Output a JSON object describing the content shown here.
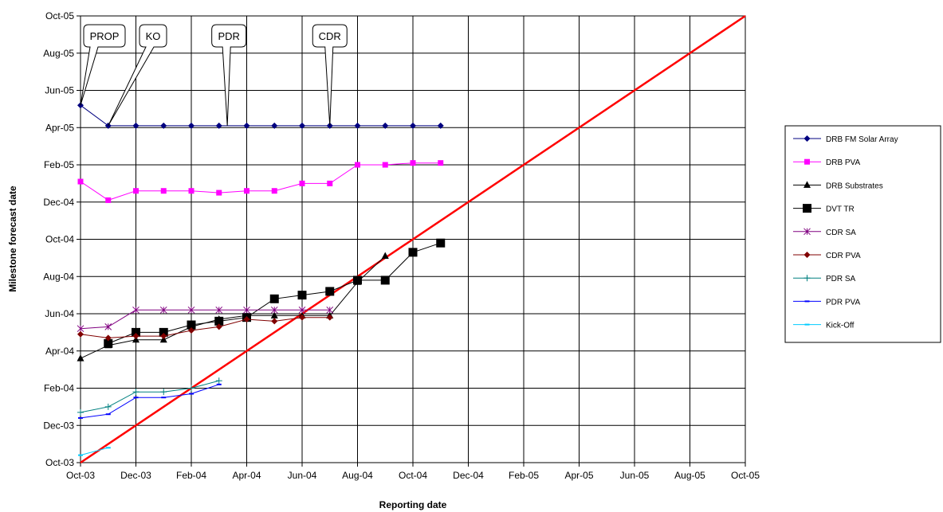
{
  "chart_data": {
    "type": "line",
    "xlabel": "Reporting date",
    "ylabel": "Milestone forecast date",
    "x_ticks": [
      "Oct-03",
      "Dec-03",
      "Feb-04",
      "Apr-04",
      "Jun-04",
      "Aug-04",
      "Oct-04",
      "Dec-04",
      "Feb-05",
      "Apr-05",
      "Jun-05",
      "Aug-05",
      "Oct-05"
    ],
    "y_ticks": [
      "Oct-03",
      "Dec-03",
      "Feb-04",
      "Apr-04",
      "Jun-04",
      "Aug-04",
      "Oct-04",
      "Dec-04",
      "Feb-05",
      "Apr-05",
      "Jun-05",
      "Aug-05",
      "Oct-05"
    ],
    "xlim": [
      0,
      24
    ],
    "ylim": [
      0,
      24
    ],
    "value_units": "months from Oct-03",
    "grid": true,
    "legend_position": "right",
    "diagonal": {
      "from": [
        0,
        0
      ],
      "to": [
        24,
        24
      ],
      "color": "#ff0000"
    },
    "series": [
      {
        "name": "DRB FM Solar Array",
        "color": "#000080",
        "marker": "diamond",
        "points": [
          [
            0,
            19.2
          ],
          [
            1,
            18.1
          ],
          [
            2,
            18.1
          ],
          [
            3,
            18.1
          ],
          [
            4,
            18.1
          ],
          [
            5,
            18.1
          ],
          [
            6,
            18.1
          ],
          [
            7,
            18.1
          ],
          [
            8,
            18.1
          ],
          [
            9,
            18.1
          ],
          [
            10,
            18.1
          ],
          [
            11,
            18.1
          ],
          [
            12,
            18.1
          ],
          [
            13,
            18.1
          ]
        ]
      },
      {
        "name": "DRB PVA",
        "color": "#ff00ff",
        "marker": "square",
        "points": [
          [
            0,
            15.1
          ],
          [
            1,
            14.1
          ],
          [
            2,
            14.6
          ],
          [
            3,
            14.6
          ],
          [
            4,
            14.6
          ],
          [
            5,
            14.5
          ],
          [
            6,
            14.6
          ],
          [
            7,
            14.6
          ],
          [
            8,
            15.0
          ],
          [
            9,
            15.0
          ],
          [
            10,
            16.0
          ],
          [
            11,
            16.0
          ],
          [
            12,
            16.1
          ],
          [
            13,
            16.1
          ]
        ]
      },
      {
        "name": "DRB Substrates",
        "color": "#000000",
        "marker": "triangle",
        "points": [
          [
            0,
            5.6
          ],
          [
            1,
            6.3
          ],
          [
            2,
            6.6
          ],
          [
            3,
            6.6
          ],
          [
            4,
            7.3
          ],
          [
            5,
            7.7
          ],
          [
            6,
            7.9
          ],
          [
            7,
            7.9
          ],
          [
            8,
            7.9
          ],
          [
            9,
            7.9
          ],
          [
            10,
            9.7
          ],
          [
            11,
            11.1
          ]
        ]
      },
      {
        "name": "DVT TR",
        "color": "#000000",
        "marker": "bigsquare",
        "points": [
          [
            1,
            6.4
          ],
          [
            2,
            7.0
          ],
          [
            3,
            7.0
          ],
          [
            4,
            7.4
          ],
          [
            5,
            7.6
          ],
          [
            6,
            7.8
          ],
          [
            7,
            8.8
          ],
          [
            8,
            9.0
          ],
          [
            9,
            9.2
          ],
          [
            10,
            9.8
          ],
          [
            11,
            9.8
          ],
          [
            12,
            11.3
          ],
          [
            13,
            11.8
          ]
        ]
      },
      {
        "name": "CDR SA",
        "color": "#800080",
        "marker": "star",
        "points": [
          [
            0,
            7.2
          ],
          [
            1,
            7.3
          ],
          [
            2,
            8.2
          ],
          [
            3,
            8.2
          ],
          [
            4,
            8.2
          ],
          [
            5,
            8.2
          ],
          [
            6,
            8.2
          ],
          [
            7,
            8.2
          ],
          [
            8,
            8.2
          ],
          [
            9,
            8.2
          ]
        ]
      },
      {
        "name": "CDR PVA",
        "color": "#800000",
        "marker": "diamond",
        "points": [
          [
            0,
            6.9
          ],
          [
            1,
            6.7
          ],
          [
            2,
            6.8
          ],
          [
            3,
            6.8
          ],
          [
            4,
            7.1
          ],
          [
            5,
            7.3
          ],
          [
            6,
            7.7
          ],
          [
            7,
            7.6
          ],
          [
            8,
            7.8
          ],
          [
            9,
            7.8
          ]
        ]
      },
      {
        "name": "PDR SA",
        "color": "#008080",
        "marker": "plus",
        "points": [
          [
            0,
            2.7
          ],
          [
            1,
            3.0
          ],
          [
            2,
            3.8
          ],
          [
            3,
            3.8
          ],
          [
            4,
            4.0
          ],
          [
            5,
            4.4
          ]
        ]
      },
      {
        "name": "PDR PVA",
        "color": "#0000ff",
        "marker": "dash",
        "points": [
          [
            0,
            2.4
          ],
          [
            1,
            2.6
          ],
          [
            2,
            3.5
          ],
          [
            3,
            3.5
          ],
          [
            4,
            3.7
          ],
          [
            5,
            4.2
          ]
        ]
      },
      {
        "name": "Kick-Off",
        "color": "#00ccff",
        "marker": "dash",
        "points": [
          [
            0,
            0.4
          ],
          [
            1,
            0.8
          ]
        ]
      }
    ],
    "annotations": [
      {
        "text": "PROP",
        "target": [
          0,
          19.2
        ]
      },
      {
        "text": "KO",
        "target": [
          1,
          18.1
        ]
      },
      {
        "text": "PDR",
        "target": [
          5.3,
          18.1
        ]
      },
      {
        "text": "CDR",
        "target": [
          9,
          18.1
        ]
      }
    ]
  }
}
